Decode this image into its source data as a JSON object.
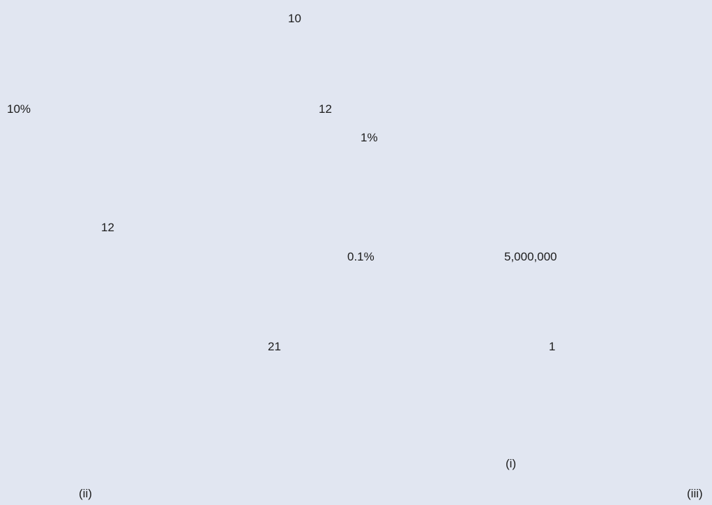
{
  "labels": [
    "10",
    "10%",
    "12",
    "1%",
    "12",
    "0.1%",
    "5,000,000",
    "21",
    "1",
    "(i)",
    "(ii)",
    "(iii)"
  ]
}
